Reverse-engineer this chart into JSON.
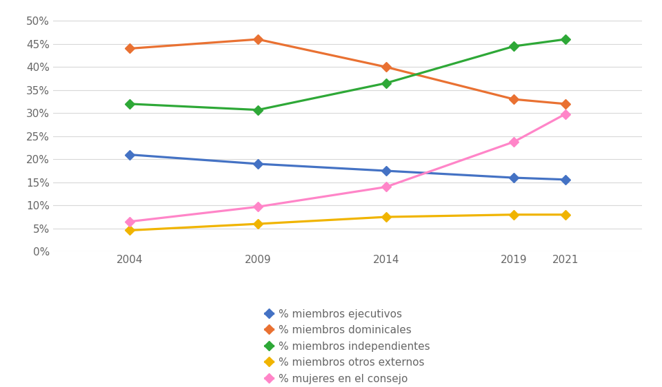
{
  "years": [
    2004,
    2009,
    2014,
    2019,
    2021
  ],
  "series": [
    {
      "label": "% miembros ejecutivos",
      "values": [
        0.21,
        0.19,
        0.175,
        0.16,
        0.156
      ],
      "color": "#4472C4",
      "marker": "D"
    },
    {
      "label": "% miembros dominicales",
      "values": [
        0.44,
        0.46,
        0.4,
        0.33,
        0.32
      ],
      "color": "#E97132",
      "marker": "D"
    },
    {
      "label": "% miembros independientes",
      "values": [
        0.32,
        0.307,
        0.365,
        0.445,
        0.46
      ],
      "color": "#2EA837",
      "marker": "D"
    },
    {
      "label": "% miembros otros externos",
      "values": [
        0.046,
        0.06,
        0.075,
        0.08,
        0.08
      ],
      "color": "#F0B400",
      "marker": "D"
    },
    {
      "label": "% mujeres en el consejo",
      "values": [
        0.065,
        0.097,
        0.14,
        0.238,
        0.298
      ],
      "color": "#FF85C8",
      "marker": "D"
    }
  ],
  "ylim": [
    0.0,
    0.52
  ],
  "yticks": [
    0.0,
    0.05,
    0.1,
    0.15,
    0.2,
    0.25,
    0.3,
    0.35,
    0.4,
    0.45,
    0.5
  ],
  "ytick_labels": [
    "0%",
    "5%",
    "10%",
    "15%",
    "20%",
    "25%",
    "30%",
    "35%",
    "40%",
    "45%",
    "50%"
  ],
  "xticks": [
    2004,
    2009,
    2014,
    2019,
    2021
  ],
  "xlim": [
    2001,
    2024
  ],
  "background_color": "#ffffff",
  "grid_color": "#d8d8d8",
  "legend_fontsize": 11,
  "tick_fontsize": 11,
  "line_width": 2.3,
  "marker_size": 7
}
